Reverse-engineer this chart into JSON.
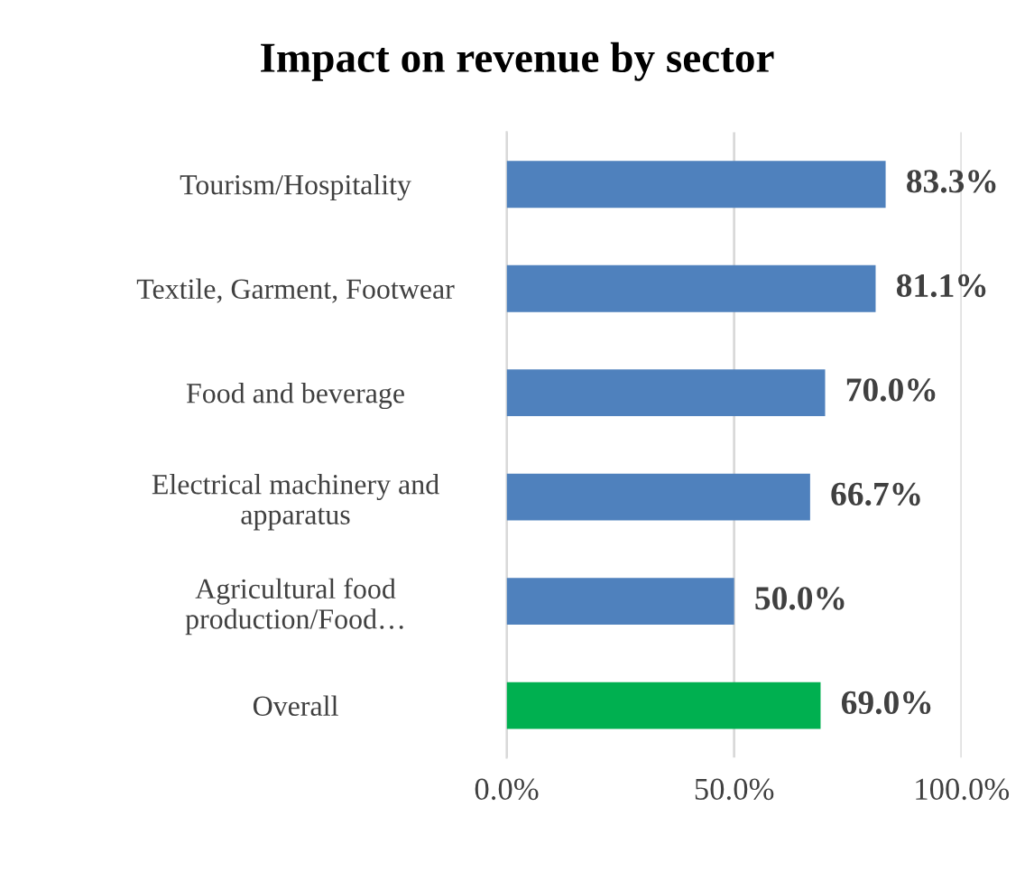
{
  "chart_data": {
    "type": "bar",
    "orientation": "horizontal",
    "title": "Impact on revenue by sector",
    "categories": [
      "Tourism/Hospitality",
      "Textile, Garment, Footwear",
      "Food and beverage",
      "Electrical machinery and\napparatus",
      "Agricultural food\nproduction/Food…",
      "Overall"
    ],
    "values": [
      83.3,
      81.1,
      70.0,
      66.7,
      50.0,
      69.0
    ],
    "colors": [
      "#4f81bd",
      "#4f81bd",
      "#4f81bd",
      "#4f81bd",
      "#4f81bd",
      "#00b050"
    ],
    "value_labels": [
      "83.3%",
      "81.1%",
      "70.0%",
      "66.7%",
      "50.0%",
      "69.0%"
    ],
    "xlim": [
      0,
      100
    ],
    "xticks": [
      {
        "value": 0,
        "label": "0.0%"
      },
      {
        "value": 50,
        "label": "50.0%"
      },
      {
        "value": 100,
        "label": "100.0%"
      }
    ],
    "grid": "x"
  }
}
